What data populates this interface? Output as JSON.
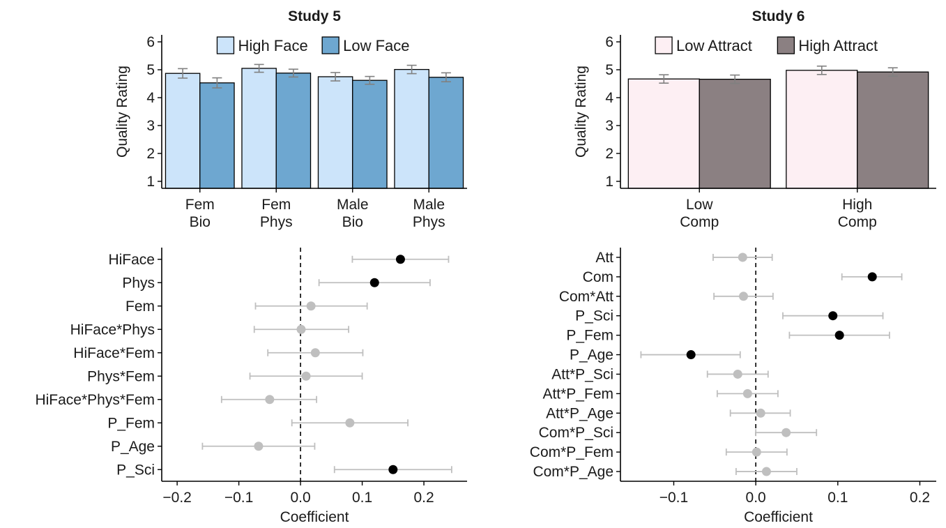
{
  "chart_data": [
    {
      "type": "bar",
      "title": "Study 5",
      "ylabel": "Quality Rating",
      "xlabel": "",
      "ylim": [
        0.75,
        6.25
      ],
      "yticks": [
        1,
        2,
        3,
        4,
        5,
        6
      ],
      "categories": [
        [
          "Fem",
          "Bio"
        ],
        [
          "Fem",
          "Phys"
        ],
        [
          "Male",
          "Bio"
        ],
        [
          "Male",
          "Phys"
        ]
      ],
      "series": [
        {
          "name": "High Face",
          "color": "#cce4fa",
          "values": [
            4.87,
            5.05,
            4.75,
            5.01
          ],
          "errors": [
            0.17,
            0.14,
            0.15,
            0.15
          ]
        },
        {
          "name": "Low Face",
          "color": "#6ea7d0",
          "values": [
            4.53,
            4.88,
            4.62,
            4.73
          ],
          "errors": [
            0.18,
            0.14,
            0.14,
            0.16
          ]
        }
      ],
      "legend": "top-center",
      "grid": false
    },
    {
      "type": "bar",
      "title": "Study 6",
      "ylabel": "Quality Rating",
      "xlabel": "",
      "ylim": [
        0.75,
        6.25
      ],
      "yticks": [
        1,
        2,
        3,
        4,
        5,
        6
      ],
      "categories": [
        [
          "Low",
          "Comp"
        ],
        [
          "High",
          "Comp"
        ]
      ],
      "series": [
        {
          "name": "Low Attract",
          "color": "#fdeff3",
          "values": [
            4.67,
            4.98
          ],
          "errors": [
            0.15,
            0.15
          ]
        },
        {
          "name": "High Attract",
          "color": "#8b8082",
          "values": [
            4.66,
            4.92
          ],
          "errors": [
            0.15,
            0.15
          ]
        }
      ],
      "legend": "top-center",
      "grid": false
    },
    {
      "type": "scatter",
      "xlabel": "Coefficient",
      "xlim": [
        -0.225,
        0.27
      ],
      "xticks": [
        -0.2,
        -0.1,
        0.0,
        0.1,
        0.2
      ],
      "xtick_labels": [
        "−0.2",
        "−0.1",
        "0.0",
        "0.1",
        "0.2"
      ],
      "reference_line": 0,
      "points": [
        {
          "label": "HiFace",
          "estimate": 0.162,
          "low": 0.084,
          "high": 0.24,
          "significant": true
        },
        {
          "label": "Phys",
          "estimate": 0.12,
          "low": 0.03,
          "high": 0.21,
          "significant": true
        },
        {
          "label": "Fem",
          "estimate": 0.017,
          "low": -0.073,
          "high": 0.108,
          "significant": false
        },
        {
          "label": "HiFace*Phys",
          "estimate": 0.001,
          "low": -0.075,
          "high": 0.078,
          "significant": false
        },
        {
          "label": "HiFace*Fem",
          "estimate": 0.024,
          "low": -0.053,
          "high": 0.101,
          "significant": false
        },
        {
          "label": "Phys*Fem",
          "estimate": 0.009,
          "low": -0.082,
          "high": 0.1,
          "significant": false
        },
        {
          "label": "HiFace*Phys*Fem",
          "estimate": -0.05,
          "low": -0.128,
          "high": 0.026,
          "significant": false
        },
        {
          "label": "P_Fem",
          "estimate": 0.08,
          "low": -0.014,
          "high": 0.174,
          "significant": false
        },
        {
          "label": "P_Age",
          "estimate": -0.068,
          "low": -0.159,
          "high": 0.023,
          "significant": false
        },
        {
          "label": "P_Sci",
          "estimate": 0.15,
          "low": 0.055,
          "high": 0.245,
          "significant": true
        }
      ],
      "colors": {
        "significant": "#000000",
        "not_significant": "#bfbfbf"
      },
      "grid": false
    },
    {
      "type": "scatter",
      "xlabel": "Coefficient",
      "xlim": [
        -0.165,
        0.22
      ],
      "xticks": [
        -0.1,
        0.0,
        0.1,
        0.2
      ],
      "xtick_labels": [
        "−0.1",
        "0.0",
        "0.1",
        "0.2"
      ],
      "reference_line": 0,
      "points": [
        {
          "label": "Att",
          "estimate": -0.016,
          "low": -0.052,
          "high": 0.02,
          "significant": false
        },
        {
          "label": "Com",
          "estimate": 0.142,
          "low": 0.105,
          "high": 0.178,
          "significant": true
        },
        {
          "label": "Com*Att",
          "estimate": -0.015,
          "low": -0.051,
          "high": 0.021,
          "significant": false
        },
        {
          "label": "P_Sci",
          "estimate": 0.094,
          "low": 0.033,
          "high": 0.155,
          "significant": true
        },
        {
          "label": "P_Fem",
          "estimate": 0.102,
          "low": 0.041,
          "high": 0.163,
          "significant": true
        },
        {
          "label": "P_Age",
          "estimate": -0.079,
          "low": -0.14,
          "high": -0.019,
          "significant": true
        },
        {
          "label": "Att*P_Sci",
          "estimate": -0.022,
          "low": -0.059,
          "high": 0.015,
          "significant": false
        },
        {
          "label": "Att*P_Fem",
          "estimate": -0.01,
          "low": -0.047,
          "high": 0.027,
          "significant": false
        },
        {
          "label": "Att*P_Age",
          "estimate": 0.006,
          "low": -0.031,
          "high": 0.042,
          "significant": false
        },
        {
          "label": "Com*P_Sci",
          "estimate": 0.037,
          "low": 0.0,
          "high": 0.074,
          "significant": false
        },
        {
          "label": "Com*P_Fem",
          "estimate": 0.001,
          "low": -0.036,
          "high": 0.038,
          "significant": false
        },
        {
          "label": "Com*P_Age",
          "estimate": 0.013,
          "low": -0.024,
          "high": 0.05,
          "significant": false
        }
      ],
      "colors": {
        "significant": "#000000",
        "not_significant": "#bfbfbf"
      },
      "grid": false
    }
  ]
}
